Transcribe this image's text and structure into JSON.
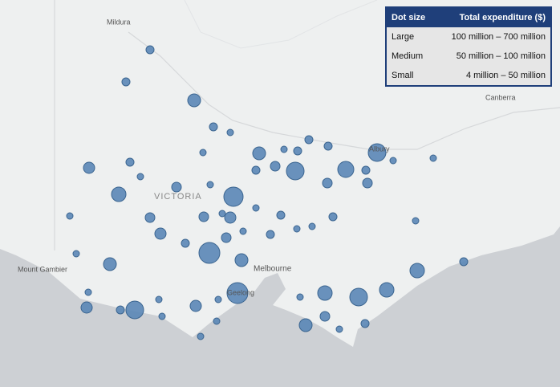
{
  "map": {
    "places": [
      "Mildura",
      "VICTORIA",
      "Albury",
      "Canberra",
      "Mount Gambier",
      "Melbourne",
      "Geelong"
    ],
    "legend": {
      "header": [
        "Dot size",
        "Total expenditure ($)"
      ],
      "rows": [
        [
          "Large",
          "100 million – 700 million"
        ],
        [
          "Medium",
          "50 million – 100 million"
        ],
        [
          "Small",
          "4 million – 50 million"
        ]
      ]
    }
  }
}
